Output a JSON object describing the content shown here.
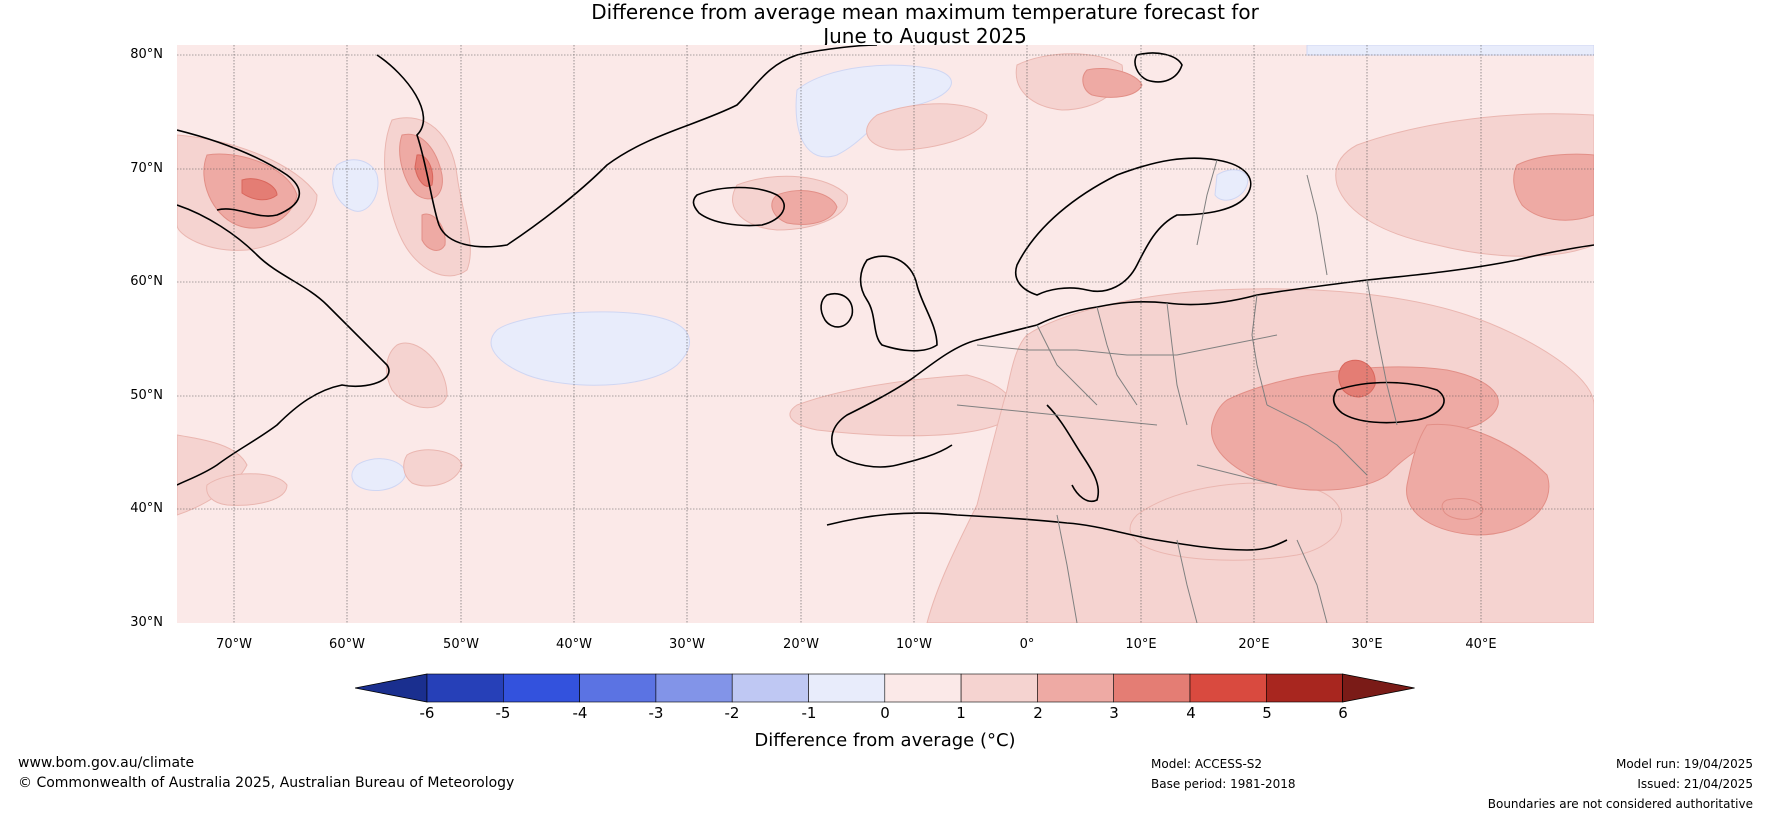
{
  "title_line1": "Difference from average mean maximum temperature forecast for",
  "title_line2": "June to August 2025",
  "lat_labels": [
    "80°N",
    "70°N",
    "60°N",
    "50°N",
    "40°N",
    "30°N"
  ],
  "lon_labels": [
    "70°W",
    "60°W",
    "50°W",
    "40°W",
    "30°W",
    "20°W",
    "10°W",
    "0°",
    "10°E",
    "20°E",
    "30°E",
    "40°E"
  ],
  "colorbar": {
    "ticks": [
      "-6",
      "-5",
      "-4",
      "-3",
      "-2",
      "-1",
      "0",
      "1",
      "2",
      "3",
      "4",
      "5",
      "6"
    ],
    "colors": [
      "#1a2f8f",
      "#2640b8",
      "#3352dd",
      "#5b73e3",
      "#8294e8",
      "#bfc8f3",
      "#e8ecfb",
      "#fbe9e8",
      "#f5d3d0",
      "#eeaaa4",
      "#e47d74",
      "#d94a3f",
      "#a8261f",
      "#7a1b17"
    ],
    "label": "Difference from average (°C)"
  },
  "footer": {
    "website": "www.bom.gov.au/climate",
    "copyright": "© Commonwealth of Australia 2025, Australian Bureau of Meteorology",
    "model": "Model: ACCESS-S2",
    "base_period": "Base period: 1981-2018",
    "model_run": "Model run: 19/04/2025",
    "issued": "Issued: 21/04/2025",
    "disclaimer": "Boundaries are not considered authoritative"
  }
}
